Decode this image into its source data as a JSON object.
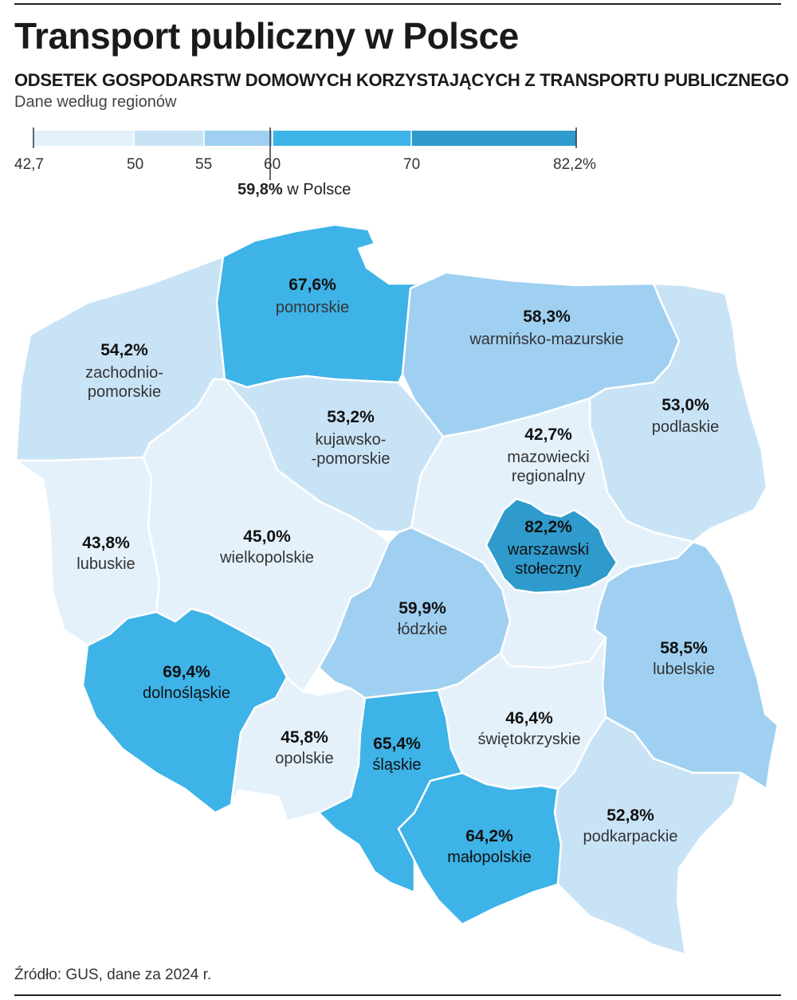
{
  "header": {
    "title": "Transport publiczny w Polsce",
    "subtitle": "ODSETEK GOSPODARSTW DOMOWYCH KORZYSTAJĄCYCH Z TRANSPORTU PUBLICZNEGO",
    "note": "Dane według regionów"
  },
  "legend": {
    "ticks": [
      "42,7",
      "50",
      "55",
      "60",
      "70",
      "82,2%"
    ],
    "bins": [
      {
        "from": 42.7,
        "to": 50,
        "color": "#e4f1fb"
      },
      {
        "from": 50,
        "to": 55,
        "color": "#c9e3f6"
      },
      {
        "from": 55,
        "to": 60,
        "color": "#9fd0f1"
      },
      {
        "from": 60,
        "to": 70,
        "color": "#3db3e7"
      },
      {
        "from": 70,
        "to": 82.2,
        "color": "#2e9bcc"
      }
    ],
    "national_value": "59,8%",
    "national_label": "w Polsce"
  },
  "map": {
    "regions": [
      {
        "id": "pomorskie",
        "value": "67,6%",
        "name": [
          "pomorskie"
        ],
        "color": "#3db3e7"
      },
      {
        "id": "warminsko-mazurskie",
        "value": "58,3%",
        "name": [
          "warmińsko-mazurskie"
        ],
        "color": "#9fd0f1"
      },
      {
        "id": "zachodniopomorskie",
        "value": "54,2%",
        "name": [
          "zachodnio-",
          "pomorskie"
        ],
        "color": "#c9e3f6"
      },
      {
        "id": "kujawsko-pomorskie",
        "value": "53,2%",
        "name": [
          "kujawsko-",
          "-pomorskie"
        ],
        "color": "#c9e3f6"
      },
      {
        "id": "podlaskie",
        "value": "53,0%",
        "name": [
          "podlaskie"
        ],
        "color": "#c9e3f6"
      },
      {
        "id": "mazowiecki-regionalny",
        "value": "42,7%",
        "name": [
          "mazowiecki",
          "regionalny"
        ],
        "color": "#e4f1fb"
      },
      {
        "id": "lubuskie",
        "value": "43,8%",
        "name": [
          "lubuskie"
        ],
        "color": "#e4f1fb"
      },
      {
        "id": "wielkopolskie",
        "value": "45,0%",
        "name": [
          "wielkopolskie"
        ],
        "color": "#e4f1fb"
      },
      {
        "id": "warszawski-stoleczny",
        "value": "82,2%",
        "name": [
          "warszawski",
          "stołeczny"
        ],
        "color": "#2e9bcc"
      },
      {
        "id": "lodzkie",
        "value": "59,9%",
        "name": [
          "łódzkie"
        ],
        "color": "#9fd0f1"
      },
      {
        "id": "lubelskie",
        "value": "58,5%",
        "name": [
          "lubelskie"
        ],
        "color": "#9fd0f1"
      },
      {
        "id": "dolnoslaskie",
        "value": "69,4%",
        "name": [
          "dolnośląskie"
        ],
        "color": "#3db3e7"
      },
      {
        "id": "opolskie",
        "value": "45,8%",
        "name": [
          "opolskie"
        ],
        "color": "#e4f1fb"
      },
      {
        "id": "slaskie",
        "value": "65,4%",
        "name": [
          "śląskie"
        ],
        "color": "#3db3e7"
      },
      {
        "id": "swietokrzyskie",
        "value": "46,4%",
        "name": [
          "świętokrzyskie"
        ],
        "color": "#e4f1fb"
      },
      {
        "id": "malopolskie",
        "value": "64,2%",
        "name": [
          "małopolskie"
        ],
        "color": "#3db3e7"
      },
      {
        "id": "podkarpackie",
        "value": "52,8%",
        "name": [
          "podkarpackie"
        ],
        "color": "#c9e3f6"
      }
    ]
  },
  "footer": {
    "source": "Źródło: GUS, dane za 2024 r."
  }
}
